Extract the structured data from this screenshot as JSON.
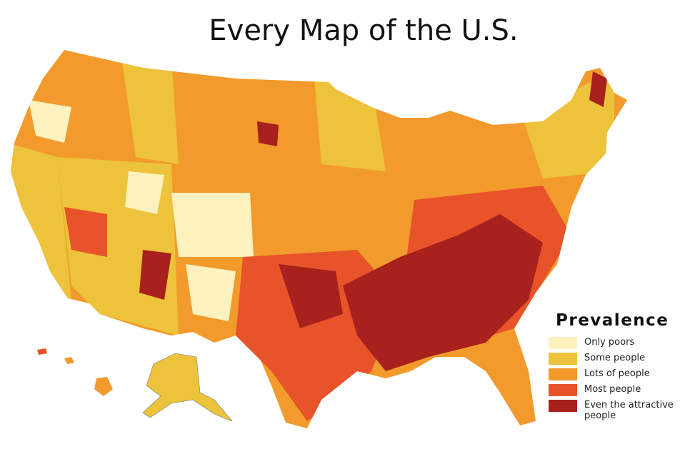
{
  "title": "Every Map of the U.S.",
  "legend": {
    "title": "Prevalence",
    "items": [
      {
        "label": "Only poors",
        "color": "#fcf2bf"
      },
      {
        "label": "Some people",
        "color": "#ecc33a"
      },
      {
        "label": "Lots of people",
        "color": "#f39a2c"
      },
      {
        "label": "Most people",
        "color": "#e8532a"
      },
      {
        "label": "Even the attractive people",
        "color": "#a8211c"
      }
    ]
  }
}
